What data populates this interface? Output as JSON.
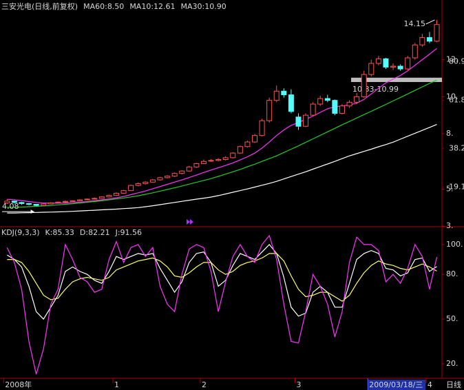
{
  "chart_data": [
    {
      "type": "candlestick",
      "title": "三安光电(日线,前复权)",
      "up_color": "#ff5252",
      "down_color": "#54fcfc",
      "open": [
        4.25,
        4.35,
        4.28,
        4.22,
        4.18,
        4.12,
        4.2,
        4.26,
        4.3,
        4.35,
        4.37,
        4.42,
        4.46,
        4.5,
        4.58,
        4.66,
        4.78,
        4.92,
        5.2,
        5.3,
        5.38,
        5.5,
        5.62,
        5.7,
        5.85,
        5.98,
        6.2,
        6.38,
        6.52,
        6.55,
        6.6,
        6.7,
        6.95,
        7.3,
        7.55,
        7.9,
        8.7,
        9.8,
        10.3,
        10.1,
        8.9,
        8.4,
        9.0,
        9.6,
        9.9,
        9.8,
        9.1,
        9.5,
        9.7,
        10.0,
        11.2,
        11.8,
        12.05,
        11.6,
        11.65,
        11.5,
        12.1,
        12.8,
        13.2,
        13.0
      ],
      "high": [
        4.45,
        4.38,
        4.32,
        4.26,
        4.2,
        4.25,
        4.3,
        4.33,
        4.38,
        4.4,
        4.46,
        4.5,
        4.55,
        4.62,
        4.7,
        4.82,
        4.96,
        5.24,
        5.36,
        5.42,
        5.55,
        5.66,
        5.75,
        5.9,
        6.02,
        6.25,
        6.42,
        6.6,
        6.62,
        6.68,
        6.78,
        7.0,
        7.36,
        7.62,
        7.98,
        8.8,
        9.95,
        10.6,
        10.45,
        10.4,
        9.1,
        9.1,
        9.7,
        10.05,
        10.1,
        9.85,
        9.6,
        9.8,
        10.2,
        11.4,
        12.0,
        12.2,
        12.1,
        11.8,
        11.75,
        12.2,
        12.9,
        13.4,
        13.5,
        14.15
      ],
      "low": [
        4.2,
        4.22,
        4.15,
        4.12,
        4.08,
        4.1,
        4.18,
        4.22,
        4.27,
        4.32,
        4.35,
        4.4,
        4.44,
        4.48,
        4.55,
        4.63,
        4.75,
        4.9,
        5.15,
        5.25,
        5.35,
        5.46,
        5.58,
        5.66,
        5.8,
        5.95,
        6.15,
        6.35,
        6.48,
        6.5,
        6.55,
        6.66,
        6.9,
        7.25,
        7.5,
        7.85,
        8.6,
        9.7,
        9.95,
        9.1,
        8.2,
        8.35,
        8.95,
        9.5,
        9.7,
        9.0,
        9.05,
        9.4,
        9.6,
        9.95,
        11.1,
        11.7,
        11.5,
        11.45,
        11.4,
        11.45,
        12.0,
        12.7,
        12.9,
        12.95
      ],
      "close": [
        4.35,
        4.28,
        4.22,
        4.18,
        4.12,
        4.2,
        4.26,
        4.3,
        4.34,
        4.37,
        4.42,
        4.46,
        4.5,
        4.58,
        4.66,
        4.78,
        4.92,
        5.2,
        5.3,
        5.38,
        5.5,
        5.62,
        5.7,
        5.85,
        5.98,
        6.2,
        6.38,
        6.5,
        6.55,
        6.6,
        6.7,
        6.95,
        7.3,
        7.55,
        7.9,
        8.7,
        9.8,
        10.3,
        10.1,
        9.2,
        8.4,
        9.0,
        9.6,
        9.9,
        9.8,
        9.1,
        9.5,
        9.7,
        10.0,
        11.2,
        11.8,
        12.05,
        11.6,
        11.65,
        11.5,
        12.1,
        12.8,
        13.2,
        13.0,
        13.9
      ],
      "series": [
        {
          "name": "MA60:8.50",
          "color": "#ffffff",
          "values": [
            3.71,
            3.71,
            3.72,
            3.73,
            3.74,
            3.75,
            3.76,
            3.77,
            3.78,
            3.8,
            3.82,
            3.84,
            3.86,
            3.88,
            3.9,
            3.92,
            3.95,
            3.97,
            4.0,
            4.05,
            4.1,
            4.16,
            4.22,
            4.28,
            4.34,
            4.4,
            4.46,
            4.51,
            4.57,
            4.65,
            4.74,
            4.83,
            4.92,
            5.01,
            5.11,
            5.21,
            5.31,
            5.42,
            5.55,
            5.68,
            5.81,
            5.94,
            6.08,
            6.22,
            6.36,
            6.5,
            6.65,
            6.8,
            6.92,
            7.04,
            7.16,
            7.29,
            7.41,
            7.54,
            7.7,
            7.86,
            8.02,
            8.18,
            8.34,
            8.5
          ]
        },
        {
          "name": "MA10:12.61",
          "color": "#ff33ff",
          "values": [
            4.45,
            4.42,
            4.38,
            4.33,
            4.28,
            4.25,
            4.24,
            4.24,
            4.25,
            4.27,
            4.3,
            4.33,
            4.37,
            4.42,
            4.47,
            4.53,
            4.6,
            4.7,
            4.8,
            4.9,
            5.02,
            5.14,
            5.26,
            5.38,
            5.5,
            5.63,
            5.76,
            5.9,
            6.03,
            6.16,
            6.28,
            6.42,
            6.58,
            6.75,
            6.95,
            7.22,
            7.55,
            7.9,
            8.2,
            8.45,
            8.6,
            8.78,
            8.95,
            9.15,
            9.35,
            9.45,
            9.5,
            9.55,
            9.65,
            9.85,
            10.15,
            10.45,
            10.75,
            10.95,
            11.15,
            11.4,
            11.7,
            12.0,
            12.3,
            12.61
          ]
        },
        {
          "name": "MA30:10.90",
          "color": "#22cc22",
          "values": [
            4.01,
            4.02,
            4.03,
            4.05,
            4.07,
            4.09,
            4.12,
            4.15,
            4.18,
            4.21,
            4.25,
            4.29,
            4.33,
            4.37,
            4.42,
            4.47,
            4.52,
            4.58,
            4.64,
            4.72,
            4.8,
            4.89,
            4.98,
            5.07,
            5.17,
            5.27,
            5.37,
            5.47,
            5.57,
            5.69,
            5.81,
            5.94,
            6.07,
            6.21,
            6.35,
            6.5,
            6.65,
            6.8,
            6.98,
            7.16,
            7.34,
            7.53,
            7.72,
            7.91,
            8.1,
            8.29,
            8.48,
            8.66,
            8.85,
            9.03,
            9.21,
            9.4,
            9.58,
            9.77,
            9.96,
            10.15,
            10.34,
            10.53,
            10.72,
            10.9
          ]
        }
      ],
      "ylim": [
        3.08,
        15.08
      ],
      "yticks": [
        {
          "value": 12,
          "label": "12."
        },
        {
          "value": 10,
          "label": "10."
        },
        {
          "value": 8,
          "label": "8."
        },
        {
          "value": 5,
          "label": "5."
        },
        {
          "value": 3,
          "label": "3."
        }
      ],
      "y2lim": [
        0.7,
        109.8
      ],
      "y2ticks": [
        80.9,
        61.8,
        38.2,
        19.1
      ],
      "band": {
        "label": "10.83-10.99",
        "low": 10.83,
        "high": 10.99
      }
    },
    {
      "type": "line",
      "title": "KDJ(9,3,3)",
      "series": [
        {
          "name": "K:85.33",
          "color": "#ffffff",
          "values": [
            93,
            90,
            85,
            72,
            55,
            50,
            58,
            66,
            82,
            85,
            82,
            80,
            76,
            74,
            82,
            92,
            90,
            92,
            94,
            93,
            94,
            84,
            76,
            68,
            75,
            88,
            94,
            95,
            88,
            72,
            76,
            86,
            94,
            92,
            90,
            95,
            100,
            94,
            78,
            58,
            52,
            54,
            68,
            72,
            68,
            58,
            58,
            74,
            90,
            94,
            96,
            94,
            84,
            83,
            79,
            81,
            90,
            91,
            82,
            85.33
          ]
        },
        {
          "name": "D:82.21",
          "color": "#ffff66",
          "values": [
            90,
            90,
            88,
            82,
            74,
            66,
            63,
            64,
            70,
            75,
            77,
            78,
            77,
            76,
            78,
            83,
            85,
            87,
            89,
            90,
            91,
            89,
            85,
            79,
            78,
            81,
            85,
            88,
            88,
            83,
            80,
            82,
            86,
            88,
            89,
            91,
            94,
            94,
            89,
            79,
            70,
            65,
            66,
            68,
            68,
            65,
            62,
            66,
            74,
            81,
            86,
            89,
            87,
            86,
            84,
            83,
            85,
            87,
            85,
            82.21
          ]
        },
        {
          "name": "J:91.56",
          "color": "#ff33ff",
          "values": [
            98,
            88,
            70,
            35,
            13,
            30,
            60,
            70,
            100,
            90,
            78,
            75,
            68,
            70,
            90,
            102,
            88,
            98,
            100,
            92,
            98,
            72,
            60,
            55,
            80,
            97,
            100,
            98,
            82,
            55,
            75,
            92,
            100,
            92,
            88,
            100,
            106,
            90,
            60,
            35,
            34,
            55,
            80,
            72,
            60,
            38,
            55,
            88,
            105,
            100,
            100,
            96,
            75,
            80,
            74,
            84,
            100,
            92,
            70,
            91.56
          ]
        }
      ],
      "ylim": [
        10.75,
        110.6
      ],
      "yticks": [
        {
          "value": 100,
          "label": "100."
        },
        {
          "value": 80,
          "label": "80."
        },
        {
          "value": 50,
          "label": "50."
        },
        {
          "value": 20,
          "label": "20."
        }
      ],
      "categories": [
        "2008年",
        null,
        null,
        null,
        null,
        null,
        null,
        null,
        null,
        null,
        null,
        null,
        null,
        null,
        null,
        "1",
        null,
        null,
        null,
        null,
        null,
        null,
        null,
        null,
        null,
        null,
        null,
        "2",
        null,
        null,
        null,
        null,
        null,
        null,
        null,
        null,
        null,
        null,
        null,
        null,
        "3",
        null,
        null,
        null,
        null,
        null,
        null,
        null,
        null,
        null,
        "2009/03/18/三",
        null,
        null,
        null,
        null,
        null,
        null,
        null,
        "4",
        null
      ],
      "cursor": 50,
      "period_label": "日线"
    }
  ]
}
